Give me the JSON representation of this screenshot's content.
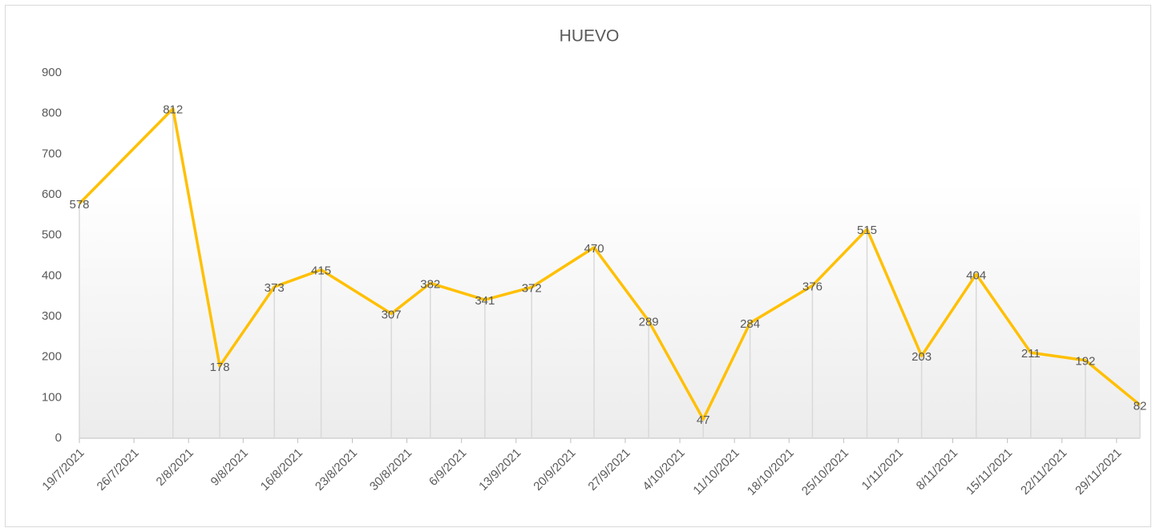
{
  "chart_data": {
    "type": "line",
    "title": "HUEVO",
    "x": [
      "19/7/2021",
      "31/7/2021",
      "6/8/2021",
      "13/8/2021",
      "19/8/2021",
      "28/8/2021",
      "2/9/2021",
      "9/9/2021",
      "15/9/2021",
      "23/9/2021",
      "30/9/2021",
      "7/10/2021",
      "13/10/2021",
      "21/10/2021",
      "28/10/2021",
      "4/11/2021",
      "11/11/2021",
      "18/11/2021",
      "25/11/2021",
      "2/12/2021"
    ],
    "series": [
      {
        "name": "HUEVO",
        "color": "#ffc000",
        "values": [
          578,
          812,
          178,
          373,
          415,
          307,
          382,
          341,
          372,
          470,
          289,
          47,
          284,
          376,
          515,
          203,
          404,
          211,
          192,
          82
        ]
      }
    ],
    "xlim": [
      "19/7/2021",
      "2/12/2021"
    ],
    "xticks": [
      "19/7/2021",
      "26/7/2021",
      "2/8/2021",
      "9/8/2021",
      "16/8/2021",
      "23/8/2021",
      "30/8/2021",
      "6/9/2021",
      "13/9/2021",
      "20/9/2021",
      "27/9/2021",
      "4/10/2021",
      "11/10/2021",
      "18/10/2021",
      "25/10/2021",
      "1/11/2021",
      "8/11/2021",
      "15/11/2021",
      "22/11/2021",
      "29/11/2021"
    ],
    "ylim": [
      0,
      900
    ],
    "yticks": [
      0,
      100,
      200,
      300,
      400,
      500,
      600,
      700,
      800,
      900
    ],
    "drop_lines": true,
    "data_labels": true
  }
}
